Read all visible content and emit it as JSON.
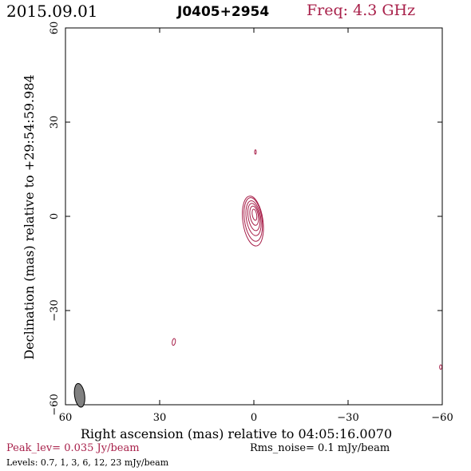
{
  "header": {
    "date": "2015.09.01",
    "source": "J0405+2954",
    "frequency": "Freq: 4.3 GHz"
  },
  "footer": {
    "peak": "Peak_lev=  0.035 Jy/beam",
    "rms": "Rms_noise=   0.1 mJy/beam",
    "levels": "Levels: 0.7,    1,    3,    6,   12,   23 mJy/beam"
  },
  "colors": {
    "contour": "#a8204a",
    "beam": "#808080"
  },
  "chart_data": {
    "type": "contour",
    "title": "J0405+2954",
    "xlabel": "Right ascension (mas) relative to 04:05:16.0070",
    "ylabel": "Declination (mas) relative to +29:54:59.984",
    "xlim": [
      60,
      -60
    ],
    "ylim": [
      -60,
      60
    ],
    "x_ticks": [
      60,
      30,
      0,
      -30,
      -60
    ],
    "y_ticks": [
      -60,
      -30,
      0,
      30,
      60
    ],
    "x_tick_labels": [
      "60",
      "30",
      "0",
      "−30",
      "−60"
    ],
    "y_tick_labels": [
      "−60",
      "−30",
      "0",
      "30",
      "60"
    ],
    "units": "mas",
    "peak_jy_per_beam": 0.035,
    "rms_noise_mjy_per_beam": 0.1,
    "contour_levels_mjy_per_beam": [
      0.7,
      1,
      3,
      6,
      12,
      23
    ],
    "core_contours": [
      {
        "level": 0.7,
        "cx": 0.3,
        "cy": -1.5,
        "rx": 3.2,
        "ry": 8.0,
        "angle": -8
      },
      {
        "level": 1,
        "cx": 0.2,
        "cy": -1.0,
        "rx": 2.8,
        "ry": 7.0,
        "angle": -8
      },
      {
        "level": 3,
        "cx": 0.1,
        "cy": -0.6,
        "rx": 2.3,
        "ry": 5.6,
        "angle": -9
      },
      {
        "level": 6,
        "cx": 0.0,
        "cy": -0.2,
        "rx": 1.8,
        "ry": 4.4,
        "angle": -10
      },
      {
        "level": 12,
        "cx": -0.1,
        "cy": 0.2,
        "rx": 1.3,
        "ry": 3.1,
        "angle": -10
      },
      {
        "level": 23,
        "cx": -0.2,
        "cy": 0.5,
        "rx": 0.7,
        "ry": 1.8,
        "angle": -10
      }
    ],
    "extra_contours": [
      {
        "level": 0.7,
        "cx": -0.5,
        "cy": 20.5,
        "rx": 0.25,
        "ry": 0.7,
        "angle": 0
      },
      {
        "level": 0.7,
        "cx": 25.5,
        "cy": -40.0,
        "rx": 0.5,
        "ry": 1.1,
        "angle": 10
      },
      {
        "level": 0.7,
        "cx": -59.5,
        "cy": -48.0,
        "rx": 0.35,
        "ry": 0.7,
        "angle": 0
      }
    ],
    "beam": {
      "cx": 55.5,
      "cy": -57.0,
      "major_mas": 3.8,
      "minor_mas": 1.6,
      "pa_deg": -8
    }
  }
}
